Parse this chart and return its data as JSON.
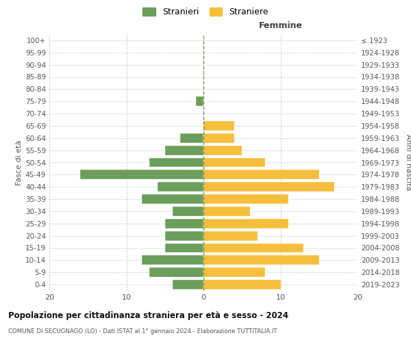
{
  "age_groups": [
    "0-4",
    "5-9",
    "10-14",
    "15-19",
    "20-24",
    "25-29",
    "30-34",
    "35-39",
    "40-44",
    "45-49",
    "50-54",
    "55-59",
    "60-64",
    "65-69",
    "70-74",
    "75-79",
    "80-84",
    "85-89",
    "90-94",
    "95-99",
    "100+"
  ],
  "birth_years": [
    "2019-2023",
    "2014-2018",
    "2009-2013",
    "2004-2008",
    "1999-2003",
    "1994-1998",
    "1989-1993",
    "1984-1988",
    "1979-1983",
    "1974-1978",
    "1969-1973",
    "1964-1968",
    "1959-1963",
    "1954-1958",
    "1949-1953",
    "1944-1948",
    "1939-1943",
    "1934-1938",
    "1929-1933",
    "1924-1928",
    "≤ 1923"
  ],
  "males": [
    4,
    7,
    8,
    5,
    5,
    5,
    4,
    8,
    6,
    16,
    7,
    5,
    3,
    0,
    0,
    1,
    0,
    0,
    0,
    0,
    0
  ],
  "females": [
    10,
    8,
    15,
    13,
    7,
    11,
    6,
    11,
    17,
    15,
    8,
    5,
    4,
    4,
    0,
    0,
    0,
    0,
    0,
    0,
    0
  ],
  "male_color": "#6a9e5a",
  "female_color": "#f5be3c",
  "male_label": "Stranieri",
  "female_label": "Straniere",
  "title": "Popolazione per cittadinanza straniera per età e sesso - 2024",
  "subtitle": "COMUNE DI SECUGNAGO (LO) - Dati ISTAT al 1° gennaio 2024 - Elaborazione TUTTITALIA.IT",
  "xlabel_right": "Femmine",
  "ylabel_left": "Fasce di età",
  "ylabel_right": "Anni di nascita",
  "xlim": 20,
  "background_color": "#ffffff",
  "grid_color": "#cccccc"
}
